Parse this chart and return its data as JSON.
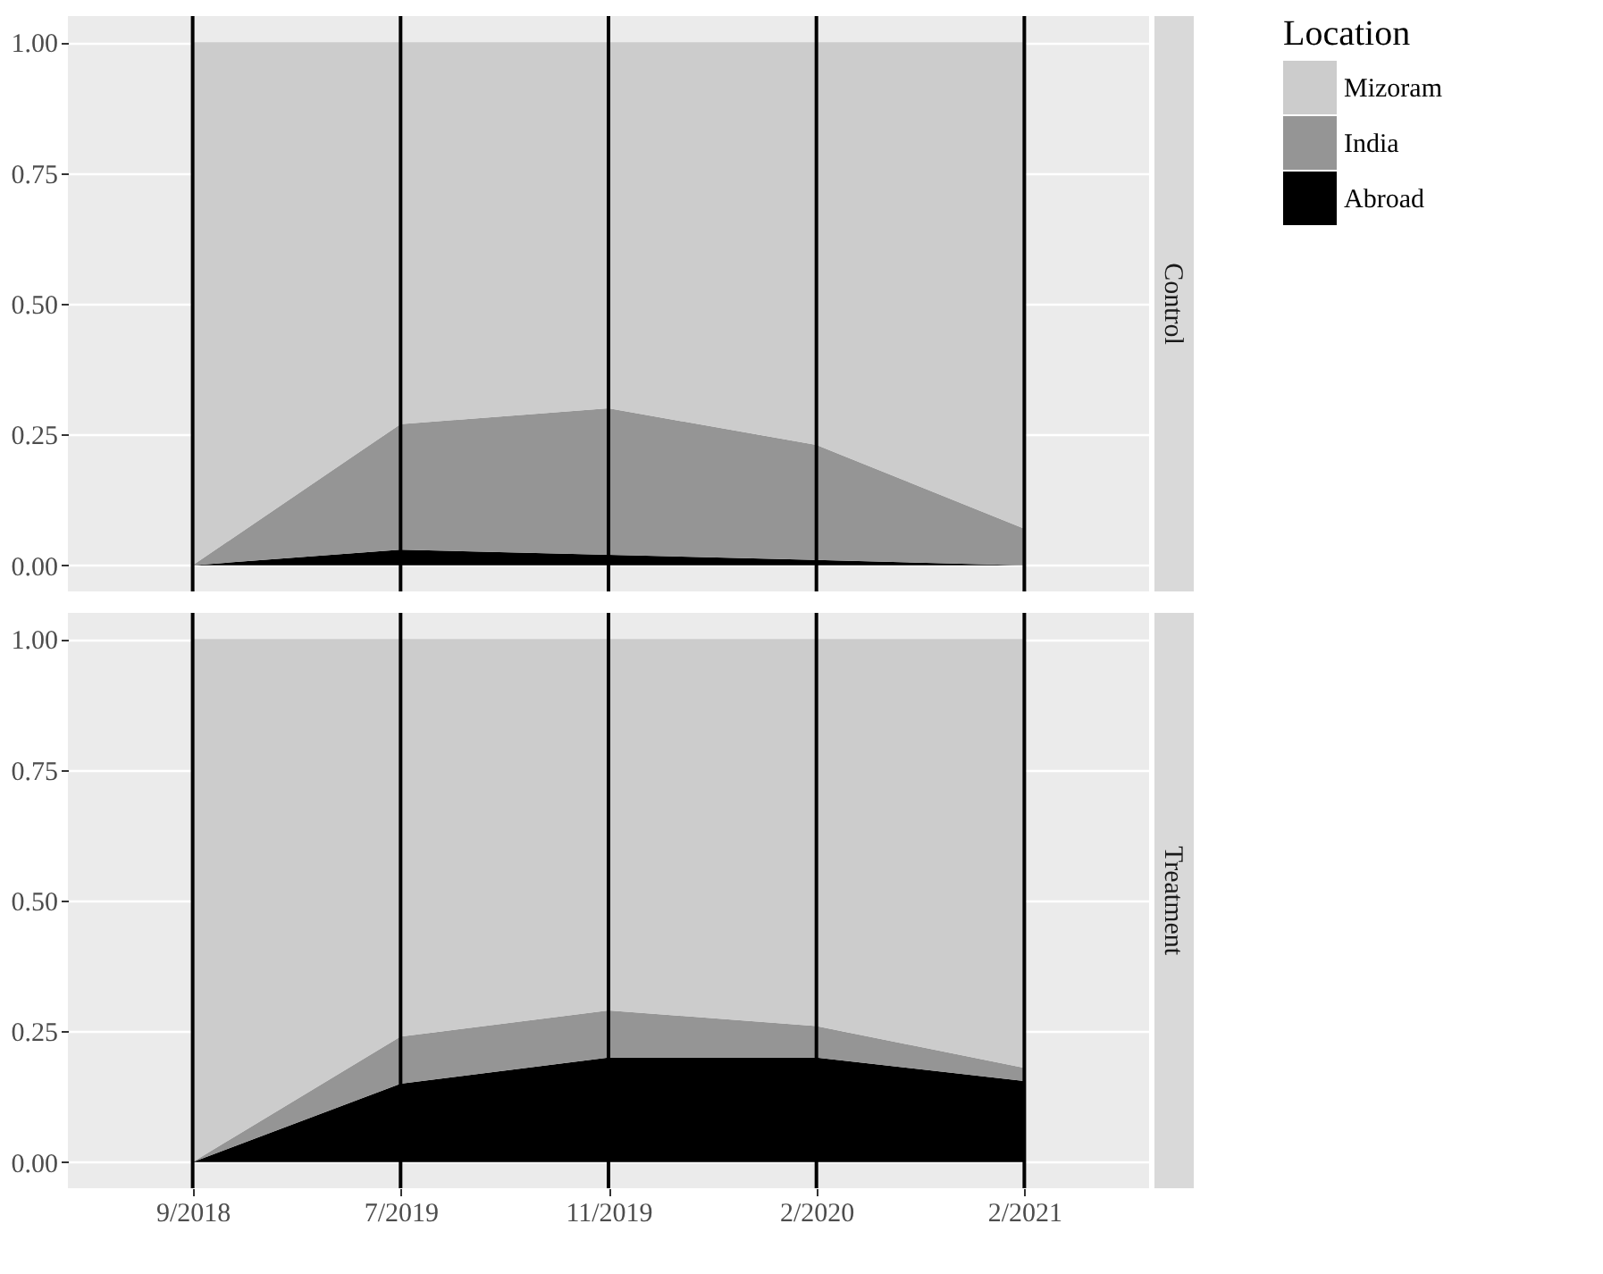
{
  "chart_data": [
    {
      "type": "area",
      "title": "Control",
      "stacked": true,
      "categories": [
        "9/2018",
        "7/2019",
        "11/2019",
        "2/2020",
        "2/2021"
      ],
      "series": [
        {
          "name": "Abroad",
          "color": "#000000",
          "values": [
            0,
            0.03,
            0.02,
            0.01,
            0
          ]
        },
        {
          "name": "India",
          "color": "#959595",
          "values": [
            0,
            0.24,
            0.28,
            0.22,
            0.07
          ]
        },
        {
          "name": "Mizoram",
          "color": "#cccccc",
          "values": [
            1,
            0.73,
            0.7,
            0.77,
            0.93
          ]
        }
      ],
      "ylim": [
        -0.05,
        1.05
      ],
      "yticks": [
        {
          "value": 0,
          "label": "0.00"
        },
        {
          "value": 0.25,
          "label": "0.25"
        },
        {
          "value": 0.5,
          "label": "0.50"
        },
        {
          "value": 0.75,
          "label": "0.75"
        },
        {
          "value": 1,
          "label": "1.00"
        }
      ],
      "ref_lines": [
        {
          "axis": "x",
          "value": "9/2018",
          "color": "#000000"
        },
        {
          "axis": "x",
          "value": "7/2019",
          "color": "#000000"
        },
        {
          "axis": "x",
          "value": "11/2019",
          "color": "#000000"
        },
        {
          "axis": "x",
          "value": "2/2020",
          "color": "#000000"
        },
        {
          "axis": "x",
          "value": "2/2021",
          "color": "#000000"
        }
      ],
      "grid": "y",
      "legend": "right",
      "legend_title": "Location",
      "tick_labels": "y"
    },
    {
      "type": "area",
      "title": "Treatment",
      "stacked": true,
      "categories": [
        "9/2018",
        "7/2019",
        "11/2019",
        "2/2020",
        "2/2021"
      ],
      "series": [
        {
          "name": "Abroad",
          "color": "#000000",
          "values": [
            0,
            0.15,
            0.2,
            0.2,
            0.155
          ]
        },
        {
          "name": "India",
          "color": "#959595",
          "values": [
            0,
            0.09,
            0.09,
            0.06,
            0.025
          ]
        },
        {
          "name": "Mizoram",
          "color": "#cccccc",
          "values": [
            1,
            0.76,
            0.71,
            0.74,
            0.82
          ]
        }
      ],
      "ylim": [
        -0.05,
        1.05
      ],
      "yticks": [
        {
          "value": 0,
          "label": "0.00"
        },
        {
          "value": 0.25,
          "label": "0.25"
        },
        {
          "value": 0.5,
          "label": "0.50"
        },
        {
          "value": 0.75,
          "label": "0.75"
        },
        {
          "value": 1,
          "label": "1.00"
        }
      ],
      "ref_lines": [
        {
          "axis": "x",
          "value": "9/2018",
          "color": "#000000"
        },
        {
          "axis": "x",
          "value": "7/2019",
          "color": "#000000"
        },
        {
          "axis": "x",
          "value": "11/2019",
          "color": "#000000"
        },
        {
          "axis": "x",
          "value": "2/2020",
          "color": "#000000"
        },
        {
          "axis": "x",
          "value": "2/2021",
          "color": "#000000"
        }
      ],
      "grid": "y"
    }
  ]
}
